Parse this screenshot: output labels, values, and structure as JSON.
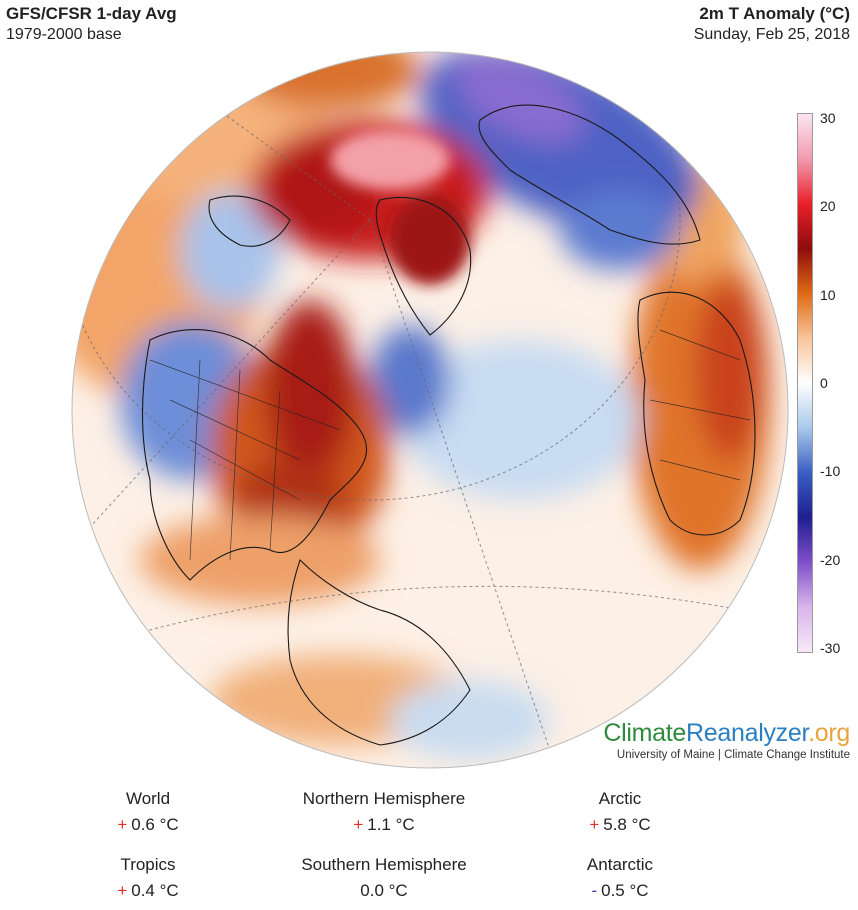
{
  "header": {
    "title": "GFS/CFSR 1-day Avg",
    "base": "1979-2000 base",
    "variable": "2m T Anomaly (°C)",
    "date": "Sunday, Feb 25, 2018"
  },
  "colorbar": {
    "ticks": [
      "30",
      "20",
      "10",
      "0",
      "-10",
      "-20",
      "-30"
    ],
    "stops": [
      "#fbe6f0",
      "#f29ab0",
      "#e8202a",
      "#8e0c0c",
      "#e06a14",
      "#f8c49a",
      "#ffffff",
      "#a9c9ea",
      "#3a5fc4",
      "#1f1f8f",
      "#7f4fc9",
      "#d9b6ec",
      "#f8e8f8"
    ]
  },
  "brand": {
    "name_a": "Climate",
    "name_b": "Reanalyzer",
    "name_c": ".org",
    "subtitle": "University of Maine | Climate Change Institute",
    "color_a": "#2e8b3e",
    "color_b": "#2b7fc1",
    "color_c": "#e8a33a"
  },
  "stats": [
    {
      "label": "World",
      "sign": "+",
      "value": "0.6 °C"
    },
    {
      "label": "Northern Hemisphere",
      "sign": "+",
      "value": "1.1 °C"
    },
    {
      "label": "Arctic",
      "sign": "+",
      "value": "5.8 °C"
    },
    {
      "label": "Tropics",
      "sign": "+",
      "value": "0.4 °C"
    },
    {
      "label": "Southern Hemisphere",
      "sign": "",
      "value": "0.0 °C"
    },
    {
      "label": "Antarctic",
      "sign": "-",
      "value": "0.5 °C"
    }
  ],
  "sign_colors": {
    "plus": "#d6312b",
    "minus": "#2b3bb0"
  }
}
